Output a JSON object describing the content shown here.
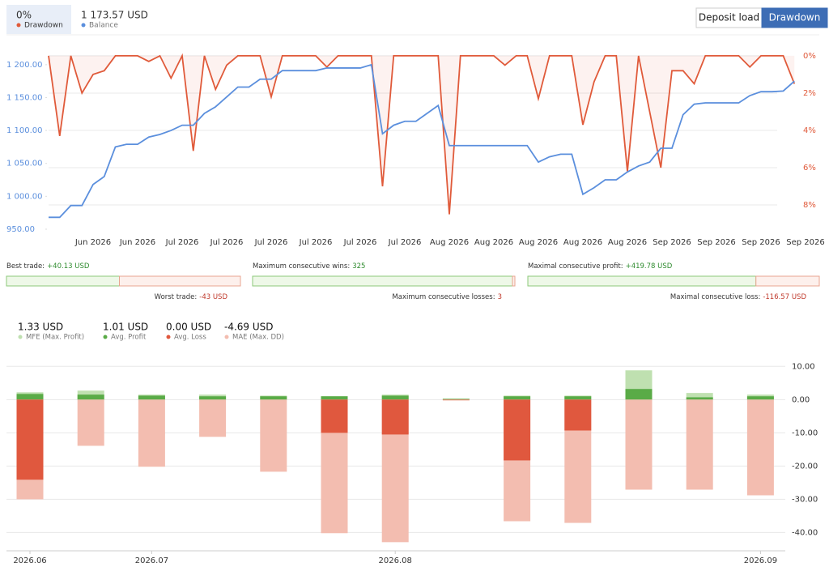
{
  "header": {
    "drawdown_value": "0%",
    "balance_value": "1 173.57 USD"
  },
  "tabs": [
    "Deposit load",
    "Drawdown"
  ],
  "active_tab": 1,
  "stats": [
    {
      "label": "Best trade:",
      "value": 40.13,
      "value_label": "+40.13 USD",
      "opposite": {
        "label": "Worst trade:",
        "value": -43,
        "value_label": "-43 USD"
      }
    },
    {
      "label": "Maximum consecutive wins:",
      "value": 325,
      "opposite": {
        "label": "Maximum consecutive losses:",
        "value": 3
      }
    },
    {
      "label": "Maximal consecutive profit:",
      "value": 419.78,
      "value_label": "+419.78 USD",
      "opposite": {
        "label": "Maximal consecutive loss:",
        "value": -116.57,
        "value_label": "-116.57 USD"
      }
    }
  ],
  "chart_data": [
    {
      "type": "line",
      "categories": [
        null,
        null,
        null,
        null,
        "Jun 2026",
        null,
        null,
        null,
        "Jun 2026",
        null,
        null,
        null,
        "Jul 2026",
        null,
        null,
        null,
        "Jul 2026",
        null,
        null,
        null,
        "Jul 2026",
        null,
        null,
        null,
        "Jul 2026",
        null,
        null,
        null,
        "Jul 2026",
        null,
        null,
        null,
        "Jul 2026",
        null,
        null,
        null,
        "Aug 2026",
        null,
        null,
        null,
        "Aug 2026",
        null,
        null,
        null,
        "Aug 2026",
        null,
        null,
        null,
        "Aug 2026",
        null,
        null,
        null,
        "Aug 2026",
        null,
        null,
        null,
        "Sep 2026",
        null,
        null,
        null,
        "Sep 2026",
        null,
        null,
        null,
        "Sep 2026",
        null,
        null,
        null,
        "Sep 2026"
      ],
      "series": [
        {
          "name": "Balance",
          "color": "#5b8fdd",
          "values": [
            968,
            968,
            986,
            986,
            1018,
            1030,
            1075,
            1079,
            1079,
            1090,
            1094,
            1100,
            1108,
            1108,
            1126,
            1136,
            1151,
            1166,
            1166,
            1178,
            1178,
            1191,
            1191,
            1191,
            1191,
            1195,
            1195,
            1195,
            1195,
            1200,
            1095,
            1108,
            1114,
            1114,
            1126,
            1138,
            1077,
            1077,
            1077,
            1077,
            1077,
            1077,
            1077,
            1077,
            1052,
            1060,
            1064,
            1064,
            1003,
            1013,
            1025,
            1025,
            1037,
            1046,
            1052,
            1073,
            1073,
            1124,
            1140,
            1142,
            1142,
            1142,
            1142,
            1153,
            1159,
            1159,
            1160,
            1175,
            null
          ]
        },
        {
          "name": "Drawdown",
          "color": "#e05a3a",
          "axis": "y2",
          "values": [
            0,
            4.3,
            0,
            2.0,
            1.0,
            0.8,
            0,
            0,
            0,
            0.3,
            0,
            1.2,
            0,
            5.1,
            0,
            1.8,
            0.5,
            0,
            0,
            0,
            2.2,
            0,
            0,
            0,
            0,
            0.6,
            0,
            0,
            0,
            0,
            7.0,
            0,
            0,
            0,
            0,
            0,
            8.5,
            0,
            0,
            0,
            0,
            0.5,
            0,
            0,
            2.3,
            0,
            0,
            0,
            3.7,
            1.4,
            0,
            0,
            6.2,
            0,
            3.0,
            6.0,
            0.8,
            0.8,
            1.5,
            0,
            0,
            0,
            0,
            0.6,
            0,
            0,
            0,
            1.5,
            null
          ]
        }
      ],
      "ylim": [
        929,
        1222
      ],
      "yticks": [
        {
          "value": 950,
          "label": "950.00"
        },
        {
          "value": 1000,
          "label": "1 000.00"
        },
        {
          "value": 1050,
          "label": "1 050.00"
        },
        {
          "value": 1100,
          "label": "1 100.00"
        },
        {
          "value": 1150,
          "label": "1 150.00"
        },
        {
          "value": 1200,
          "label": "1 200.00"
        }
      ],
      "y2lim": [
        10.04,
        -0.3
      ],
      "y2ticks": [
        {
          "value": 0,
          "label": "0%"
        },
        {
          "value": 2,
          "label": "2%"
        },
        {
          "value": 4,
          "label": "4%"
        },
        {
          "value": 6,
          "label": "6%"
        },
        {
          "value": 8,
          "label": "8%"
        }
      ],
      "grid": true
    },
    {
      "type": "bar",
      "categories": [
        "2026.06",
        null,
        "2026.07",
        null,
        null,
        null,
        "2026.08",
        null,
        null,
        null,
        null,
        null,
        "2026.09"
      ],
      "series": [
        {
          "name": "MFE (Max. Profit)",
          "total": "1.33 USD",
          "color": "#bfe0b0",
          "values": [
            2.2,
            2.7,
            1.5,
            1.5,
            1.2,
            1.0,
            1.5,
            0.3,
            1.2,
            1.2,
            8.8,
            2.0,
            1.5
          ]
        },
        {
          "name": "Avg. Profit",
          "total": "1.01 USD",
          "color": "#5aab47",
          "values": [
            1.7,
            1.5,
            1.2,
            1.0,
            1.0,
            1.0,
            1.2,
            0.2,
            1.0,
            1.0,
            3.2,
            0.7,
            1.0
          ]
        },
        {
          "name": "MAE (Max. DD)",
          "total": "-4.69 USD",
          "color": "#f3bdb0",
          "values": [
            -30.0,
            -13.9,
            -20.2,
            -11.2,
            -21.7,
            -40.2,
            -42.9,
            -0.3,
            -36.6,
            -37.1,
            -27.1,
            -27.1,
            -28.8
          ]
        },
        {
          "name": "Avg. Loss",
          "total": "0.00 USD",
          "color": "#e0583e",
          "values": [
            -24.1,
            0,
            0,
            0,
            0,
            -10.0,
            -10.5,
            -0.1,
            -18.3,
            -9.3,
            0,
            0,
            0
          ]
        }
      ],
      "legend_order": [
        0,
        1,
        3,
        2
      ],
      "ylim": [
        -45.5,
        13
      ],
      "yticks": [
        {
          "value": 10,
          "label": "10.00"
        },
        {
          "value": 0,
          "label": "0.00"
        },
        {
          "value": -10,
          "label": "-10.00"
        },
        {
          "value": -20,
          "label": "-20.00"
        },
        {
          "value": -30,
          "label": "-30.00"
        },
        {
          "value": -40,
          "label": "-40.00"
        }
      ],
      "grid": true
    }
  ]
}
